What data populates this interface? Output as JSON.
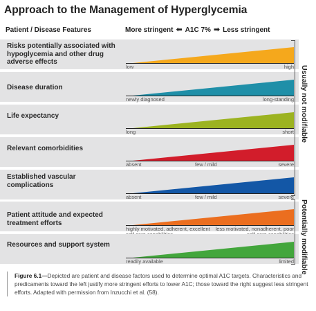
{
  "title": "Approach to the Management of Hyperglycemia",
  "header": {
    "left": "Patient / Disease Features",
    "more": "More stringent",
    "center": "A1C 7%",
    "less": "Less stringent"
  },
  "rows": [
    {
      "label": "Risks potentially associated with hypoglycemia and other drug adverse effects",
      "left": "low",
      "mid": "",
      "right": "high",
      "color": "#f5a81c"
    },
    {
      "label": "Disease duration",
      "left": "newly diagnosed",
      "mid": "",
      "right": "long-standing",
      "color": "#1f8fa8"
    },
    {
      "label": "Life expectancy",
      "left": "long",
      "mid": "",
      "right": "short",
      "color": "#9cb321"
    },
    {
      "label": "Relevant comorbidities",
      "left": "absent",
      "mid": "few / mild",
      "right": "severe",
      "color": "#d21d2b"
    },
    {
      "label": "Established vascular complications",
      "left": "absent",
      "mid": "few / mild",
      "right": "severe",
      "color": "#1357a6"
    },
    {
      "label": "Patient attitude and expected treatment efforts",
      "left": "highly motivated, adherent, excellent self-care capabilities",
      "mid": "",
      "right": "less motivated, nonadherent, poor self-care capabilities",
      "color": "#eb6e1f"
    },
    {
      "label": "Resources and support system",
      "left": "readily available",
      "mid": "",
      "right": "limited",
      "color": "#43a63c"
    }
  ],
  "side_labels": {
    "top": "Usually not modifiable",
    "bottom": "Potentially modifiable"
  },
  "caption": {
    "prefix": "Figure 6.1—",
    "text": "Depicted are patient and disease factors used to determine optimal A1C targets. Characteristics and predicaments toward the left justify more stringent efforts to lower A1C; those toward the right suggest less stringent efforts. Adapted with permission from Inzucchi et al. (58)."
  }
}
